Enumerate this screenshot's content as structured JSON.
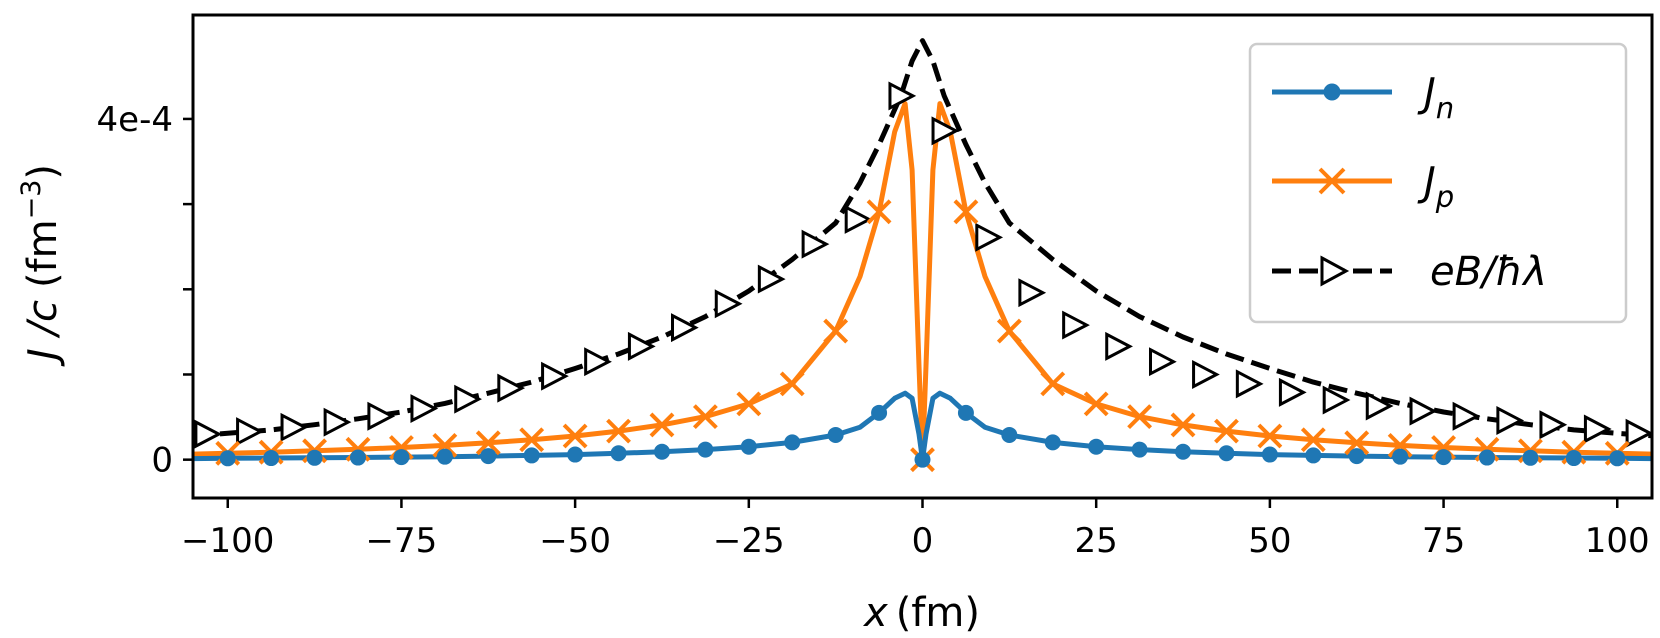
{
  "chart_data": {
    "type": "line",
    "title": "",
    "xlabel": "x (fm)",
    "xlabel_var": "x",
    "xlabel_unit": "(fm)",
    "ylabel": "J /c (fm⁻³)",
    "ylabel_var": "J /c",
    "ylabel_unit": "(fm",
    "ylabel_exp": "−3",
    "ylabel_close": ")",
    "xlim": [
      -105,
      105
    ],
    "ylim": [
      -4.5e-05,
      0.000522
    ],
    "xticks": [
      -100,
      -75,
      -50,
      -25,
      0,
      25,
      50,
      75,
      100
    ],
    "xtick_labels": [
      "−100",
      "−75",
      "−50",
      "−25",
      "0",
      "25",
      "50",
      "75",
      "100"
    ],
    "yticks": [
      0,
      0.0001,
      0.0002,
      0.0003,
      0.0004
    ],
    "ytick_labels": [
      "0",
      "",
      "",
      "",
      "4e-4"
    ],
    "legend_position": "top-right",
    "series": [
      {
        "name": "J_n",
        "label_main": "J",
        "label_sub": "n",
        "color": "#1f77b4",
        "marker": "circle",
        "dash": "solid",
        "x": [
          -105,
          -100,
          -93.75,
          -87.5,
          -81.25,
          -75,
          -68.75,
          -62.5,
          -56.25,
          -50,
          -43.75,
          -37.5,
          -31.25,
          -25,
          -18.75,
          -12.5,
          -9,
          -6.25,
          -4,
          -2.5,
          -1.5,
          -0.5,
          0,
          0.5,
          1.5,
          2.5,
          4,
          6.25,
          9,
          12.5,
          18.75,
          25,
          31.25,
          37.5,
          43.75,
          50,
          56.25,
          62.5,
          68.75,
          75,
          81.25,
          87.5,
          93.75,
          100,
          105
        ],
        "y": [
          1.3e-06,
          1.6e-06,
          1.9e-06,
          2.2e-06,
          2.5e-06,
          3e-06,
          3.5e-06,
          4.2e-06,
          5e-06,
          6e-06,
          7.5e-06,
          9.3e-06,
          1.18e-05,
          1.52e-05,
          2.03e-05,
          2.9e-05,
          3.8e-05,
          5.5e-05,
          7.2e-05,
          7.8e-05,
          7.2e-05,
          3e-05,
          0,
          3e-05,
          7.2e-05,
          7.8e-05,
          7.2e-05,
          5.5e-05,
          3.8e-05,
          2.9e-05,
          2.03e-05,
          1.52e-05,
          1.18e-05,
          9.3e-06,
          7.5e-06,
          6e-06,
          5e-06,
          4.2e-06,
          3.5e-06,
          3e-06,
          2.5e-06,
          2.2e-06,
          1.9e-06,
          1.6e-06,
          1.3e-06
        ],
        "markers_x": [
          -100,
          -93.75,
          -87.5,
          -81.25,
          -75,
          -68.75,
          -62.5,
          -56.25,
          -50,
          -43.75,
          -37.5,
          -31.25,
          -25,
          -18.75,
          -12.5,
          -6.25,
          0,
          6.25,
          12.5,
          18.75,
          25,
          31.25,
          37.5,
          43.75,
          50,
          56.25,
          62.5,
          68.75,
          75,
          81.25,
          87.5,
          93.75,
          100
        ],
        "markers_y": [
          1.6e-06,
          1.9e-06,
          2.2e-06,
          2.5e-06,
          3e-06,
          3.5e-06,
          4.2e-06,
          5e-06,
          6e-06,
          7.5e-06,
          9.3e-06,
          1.18e-05,
          1.52e-05,
          2.03e-05,
          2.9e-05,
          5.5e-05,
          0,
          5.5e-05,
          2.9e-05,
          2.03e-05,
          1.52e-05,
          1.18e-05,
          9.3e-06,
          7.5e-06,
          6e-06,
          5e-06,
          4.2e-06,
          3.5e-06,
          3e-06,
          2.5e-06,
          2.2e-06,
          1.9e-06,
          1.6e-06
        ]
      },
      {
        "name": "J_p",
        "label_main": "J",
        "label_sub": "p",
        "color": "#ff7f0e",
        "marker": "x",
        "dash": "solid",
        "x": [
          -105,
          -100,
          -93.75,
          -87.5,
          -81.25,
          -75,
          -68.75,
          -62.5,
          -56.25,
          -50,
          -43.75,
          -37.5,
          -31.25,
          -25,
          -18.75,
          -12.5,
          -9,
          -6.25,
          -4,
          -2.5,
          -1.5,
          -0.5,
          0,
          0.5,
          1.5,
          2.5,
          4,
          6.25,
          9,
          12.5,
          18.75,
          25,
          31.25,
          37.5,
          43.75,
          50,
          56.25,
          62.5,
          68.75,
          75,
          81.25,
          87.5,
          93.75,
          100,
          105
        ],
        "y": [
          6.5e-06,
          7.5e-06,
          8.8e-06,
          1.04e-05,
          1.22e-05,
          1.43e-05,
          1.68e-05,
          1.98e-05,
          2.34e-05,
          2.78e-05,
          3.35e-05,
          4.08e-05,
          5.05e-05,
          6.55e-05,
          8.9e-05,
          0.000151,
          0.000215,
          0.000291,
          0.000385,
          0.000418,
          0.00034,
          0.00011,
          0,
          0.00011,
          0.00034,
          0.000418,
          0.000385,
          0.000291,
          0.000215,
          0.000151,
          8.9e-05,
          6.55e-05,
          5.05e-05,
          4.08e-05,
          3.35e-05,
          2.78e-05,
          2.34e-05,
          1.98e-05,
          1.68e-05,
          1.43e-05,
          1.22e-05,
          1.04e-05,
          8.8e-06,
          7.5e-06,
          6.5e-06
        ],
        "markers_x": [
          -100,
          -93.75,
          -87.5,
          -81.25,
          -75,
          -68.75,
          -62.5,
          -56.25,
          -50,
          -43.75,
          -37.5,
          -31.25,
          -25,
          -18.75,
          -12.5,
          -6.25,
          0,
          6.25,
          12.5,
          18.75,
          25,
          31.25,
          37.5,
          43.75,
          50,
          56.25,
          62.5,
          68.75,
          75,
          81.25,
          87.5,
          93.75,
          100
        ],
        "markers_y": [
          7.5e-06,
          8.8e-06,
          1.04e-05,
          1.22e-05,
          1.43e-05,
          1.68e-05,
          1.98e-05,
          2.34e-05,
          2.78e-05,
          3.35e-05,
          4.08e-05,
          5.05e-05,
          6.55e-05,
          8.9e-05,
          0.000151,
          0.000291,
          0,
          0.000291,
          0.000151,
          8.9e-05,
          6.55e-05,
          5.05e-05,
          4.08e-05,
          3.35e-05,
          2.78e-05,
          2.34e-05,
          1.98e-05,
          1.68e-05,
          1.43e-05,
          1.22e-05,
          1.04e-05,
          8.8e-06,
          7.5e-06
        ]
      },
      {
        "name": "eB/ħλ",
        "label_main": "eB/ħλ",
        "label_sub": "",
        "color": "#000000",
        "marker": "triangle-right",
        "dash": "dashed",
        "x": [
          -105,
          -100,
          -93.75,
          -87.5,
          -81.25,
          -75,
          -68.75,
          -62.5,
          -56.25,
          -50,
          -43.75,
          -37.5,
          -31.25,
          -25,
          -18.75,
          -12.5,
          -9,
          -6.25,
          -3.125,
          -1.5,
          0,
          1.5,
          3.125,
          6.25,
          9,
          12.5,
          18.75,
          25,
          31.25,
          37.5,
          43.75,
          50,
          56.25,
          62.5,
          68.75,
          75,
          81.25,
          87.5,
          93.75,
          100,
          105
        ],
        "y": [
          2.8e-05,
          3.1e-05,
          3.5e-05,
          4.1e-05,
          4.8e-05,
          5.6e-05,
          6.6e-05,
          7.8e-05,
          9.1e-05,
          0.000107,
          0.000124,
          0.000144,
          0.000168,
          0.000198,
          0.000235,
          0.000278,
          0.000325,
          0.00037,
          0.000427,
          0.000468,
          0.000492,
          0.000468,
          0.000427,
          0.00037,
          0.000325,
          0.000278,
          0.000235,
          0.000198,
          0.000168,
          0.000144,
          0.000124,
          0.000107,
          9.1e-05,
          7.8e-05,
          6.6e-05,
          5.6e-05,
          4.8e-05,
          4.1e-05,
          3.5e-05,
          3.1e-05,
          2.8e-05
        ],
        "markers_x": [
          -103,
          -97,
          -90.6,
          -84.4,
          -78.1,
          -71.9,
          -65.6,
          -59.4,
          -53.1,
          -46.9,
          -40.6,
          -34.4,
          -28.1,
          -21.9,
          -15.6,
          -9.4,
          -3.1,
          3.1,
          9.4,
          15.6,
          21.9,
          28.1,
          34.4,
          40.6,
          46.9,
          53.1,
          59.4,
          65.6,
          71.9,
          78.1,
          84.4,
          90.6,
          97,
          103
        ],
        "markers_y": [
          3e-05,
          3.3e-05,
          3.8e-05,
          4.4e-05,
          5.1e-05,
          6e-05,
          7.1e-05,
          8.4e-05,
          9.8e-05,
          0.000115,
          0.000133,
          0.000155,
          0.000183,
          0.000212,
          0.000253,
          0.000282,
          0.000427,
          0.000386,
          0.000261,
          0.000196,
          0.000158,
          0.000133,
          0.000115,
          0.0001,
          8.9e-05,
          7.9e-05,
          7e-05,
          6.3e-05,
          5.7e-05,
          5.1e-05,
          4.6e-05,
          4.1e-05,
          3.6e-05,
          3.1e-05
        ]
      }
    ]
  }
}
